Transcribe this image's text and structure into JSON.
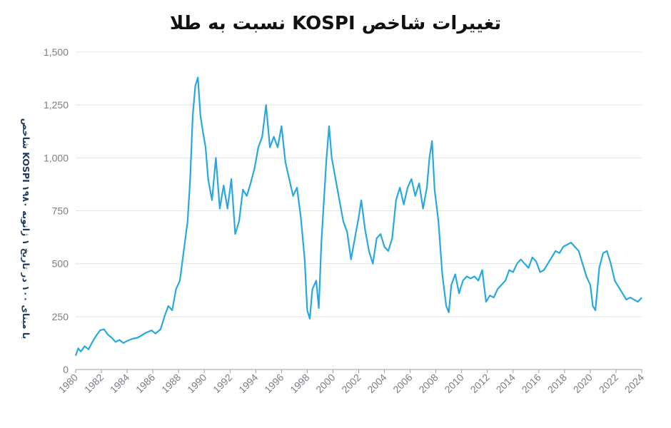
{
  "chart_data": {
    "type": "line",
    "title": "تغییرات شاخص KOSPI نسبت به طلا",
    "ylabel": "شاخص KOSPI با مبنای ۱۰۰ در تاریخ ۱ ژانویه ۱۹۸۰",
    "xlabel": "",
    "xlim": [
      1980,
      2024
    ],
    "ylim": [
      0,
      1500
    ],
    "x_ticks": [
      "1980",
      "1982",
      "1984",
      "1986",
      "1988",
      "1990",
      "1992",
      "1994",
      "1996",
      "1998",
      "2000",
      "2002",
      "2004",
      "2006",
      "2008",
      "2010",
      "2012",
      "2014",
      "2016",
      "2018",
      "2020",
      "2022",
      "2024"
    ],
    "y_ticks": [
      0,
      250,
      500,
      750,
      1000,
      1250,
      1500
    ],
    "y_tick_labels": [
      "0",
      "250",
      "500",
      "750",
      "1,000",
      "1,250",
      "1,500"
    ],
    "grid": "horizontal",
    "line_color": "#29a8e0",
    "series": [
      {
        "x": [
          1980.0,
          1980.2,
          1980.4,
          1980.7,
          1981.0,
          1981.3,
          1981.6,
          1981.9,
          1982.2,
          1982.5,
          1982.8,
          1983.1,
          1983.4,
          1983.7,
          1984.0,
          1984.4,
          1984.8,
          1985.1,
          1985.5,
          1985.9,
          1986.2,
          1986.6,
          1986.9,
          1987.2,
          1987.5,
          1987.8,
          1988.1,
          1988.4,
          1988.7,
          1988.9,
          1989.1,
          1989.3,
          1989.5,
          1989.7,
          1989.9,
          1990.1,
          1990.3,
          1990.6,
          1990.9,
          1991.2,
          1991.5,
          1991.8,
          1992.1,
          1992.4,
          1992.7,
          1993.0,
          1993.3,
          1993.6,
          1993.9,
          1994.2,
          1994.5,
          1994.8,
          1995.1,
          1995.4,
          1995.7,
          1996.0,
          1996.3,
          1996.6,
          1996.9,
          1997.2,
          1997.5,
          1997.8,
          1998.0,
          1998.2,
          1998.4,
          1998.7,
          1998.9,
          1999.1,
          1999.3,
          1999.5,
          1999.7,
          1999.9,
          2000.2,
          2000.5,
          2000.8,
          2001.1,
          2001.4,
          2001.7,
          2002.0,
          2002.2,
          2002.5,
          2002.8,
          2003.1,
          2003.4,
          2003.7,
          2004.0,
          2004.3,
          2004.6,
          2004.9,
          2005.2,
          2005.5,
          2005.8,
          2006.1,
          2006.4,
          2006.7,
          2007.0,
          2007.3,
          2007.5,
          2007.7,
          2007.9,
          2008.2,
          2008.5,
          2008.8,
          2009.0,
          2009.2,
          2009.5,
          2009.8,
          2010.1,
          2010.4,
          2010.7,
          2011.0,
          2011.3,
          2011.6,
          2011.9,
          2012.2,
          2012.5,
          2012.8,
          2013.1,
          2013.4,
          2013.7,
          2014.0,
          2014.3,
          2014.6,
          2014.9,
          2015.2,
          2015.5,
          2015.8,
          2016.1,
          2016.4,
          2016.7,
          2017.0,
          2017.3,
          2017.6,
          2017.9,
          2018.2,
          2018.5,
          2018.8,
          2019.1,
          2019.4,
          2019.7,
          2020.0,
          2020.2,
          2020.4,
          2020.7,
          2021.0,
          2021.3,
          2021.6,
          2021.9,
          2022.2,
          2022.5,
          2022.8,
          2023.1,
          2023.4,
          2023.7,
          2024.0
        ],
        "y": [
          65,
          100,
          85,
          110,
          95,
          130,
          160,
          185,
          190,
          165,
          150,
          130,
          140,
          125,
          135,
          145,
          150,
          160,
          175,
          185,
          170,
          190,
          250,
          300,
          280,
          380,
          420,
          560,
          700,
          900,
          1200,
          1340,
          1380,
          1200,
          1120,
          1050,
          900,
          800,
          1000,
          760,
          870,
          760,
          900,
          640,
          700,
          850,
          820,
          880,
          950,
          1050,
          1100,
          1250,
          1050,
          1100,
          1050,
          1150,
          980,
          900,
          820,
          860,
          720,
          520,
          280,
          240,
          380,
          420,
          290,
          600,
          800,
          1000,
          1150,
          1000,
          900,
          800,
          700,
          650,
          520,
          620,
          720,
          800,
          660,
          560,
          500,
          620,
          640,
          580,
          560,
          620,
          800,
          860,
          780,
          860,
          900,
          820,
          880,
          760,
          860,
          1000,
          1080,
          850,
          700,
          450,
          300,
          270,
          400,
          450,
          360,
          420,
          440,
          430,
          440,
          420,
          470,
          320,
          350,
          340,
          380,
          400,
          420,
          470,
          460,
          500,
          520,
          500,
          480,
          530,
          510,
          460,
          470,
          500,
          530,
          560,
          550,
          580,
          590,
          600,
          580,
          560,
          500,
          440,
          400,
          300,
          280,
          480,
          550,
          560,
          500,
          420,
          390,
          360,
          330,
          340,
          330,
          320,
          340
        ]
      }
    ]
  }
}
